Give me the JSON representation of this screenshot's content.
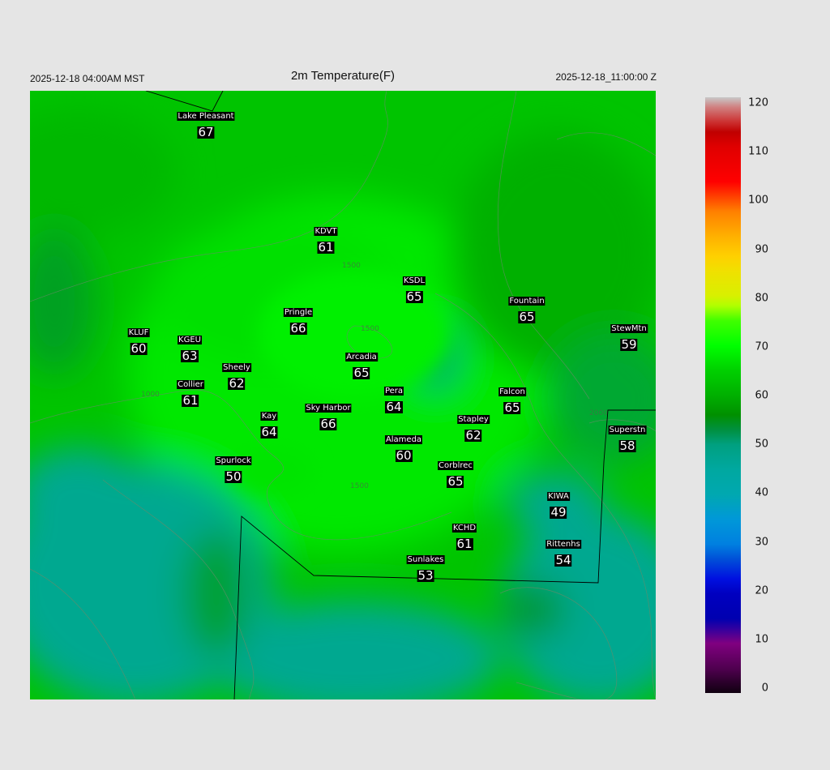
{
  "header": {
    "local_time": "2025-12-18 04:00AM MST",
    "title": "2m Temperature(F)",
    "valid_time": "2025-12-18_11:00:00 Z"
  },
  "stations": [
    {
      "name": "Lake Pleasant",
      "value": "67"
    },
    {
      "name": "KDVT",
      "value": "61"
    },
    {
      "name": "KSDL",
      "value": "65"
    },
    {
      "name": "Fountain",
      "value": "65"
    },
    {
      "name": "Pringle",
      "value": "66"
    },
    {
      "name": "KLUF",
      "value": "60"
    },
    {
      "name": "KGEU",
      "value": "63"
    },
    {
      "name": "StewMtn",
      "value": "59"
    },
    {
      "name": "Arcadia",
      "value": "65"
    },
    {
      "name": "Sheely",
      "value": "62"
    },
    {
      "name": "Collier",
      "value": "61"
    },
    {
      "name": "Pera",
      "value": "64"
    },
    {
      "name": "Falcon",
      "value": "65"
    },
    {
      "name": "Sky Harbor",
      "value": "66"
    },
    {
      "name": "Kay",
      "value": "64"
    },
    {
      "name": "Stapley",
      "value": "62"
    },
    {
      "name": "Superstn",
      "value": "58"
    },
    {
      "name": "Alameda",
      "value": "60"
    },
    {
      "name": "Spurlock",
      "value": "50"
    },
    {
      "name": "Corblrec",
      "value": "65"
    },
    {
      "name": "KIWA",
      "value": "49"
    },
    {
      "name": "KCHD",
      "value": "61"
    },
    {
      "name": "Rittenhs",
      "value": "54"
    },
    {
      "name": "Sunlakes",
      "value": "53"
    }
  ],
  "contour_labels": [
    "1000",
    "1500",
    "1500",
    "1500",
    "2000"
  ],
  "colorbar": {
    "labels": [
      "120",
      "110",
      "100",
      "90",
      "80",
      "70",
      "60",
      "50",
      "40",
      "30",
      "20",
      "10",
      "0"
    ],
    "range": [
      0,
      120
    ],
    "stops": [
      [
        0,
        "#100010"
      ],
      [
        5,
        "#500050"
      ],
      [
        10,
        "#800080"
      ],
      [
        13,
        "#3000a0"
      ],
      [
        15,
        "#0000b0"
      ],
      [
        20,
        "#0000c0"
      ],
      [
        23,
        "#0010e0"
      ],
      [
        27,
        "#0050d8"
      ],
      [
        30,
        "#0080e0"
      ],
      [
        35,
        "#0098d8"
      ],
      [
        40,
        "#00a8b0"
      ],
      [
        45,
        "#00a8a0"
      ],
      [
        50,
        "#00a080"
      ],
      [
        53,
        "#009040"
      ],
      [
        56,
        "#009000"
      ],
      [
        60,
        "#00b000"
      ],
      [
        65,
        "#00d000"
      ],
      [
        70,
        "#00ff00"
      ],
      [
        75,
        "#40ff00"
      ],
      [
        78,
        "#b0ff00"
      ],
      [
        80,
        "#d8f000"
      ],
      [
        85,
        "#f0e000"
      ],
      [
        88,
        "#ffd000"
      ],
      [
        92,
        "#ffb000"
      ],
      [
        97,
        "#ff8000"
      ],
      [
        100,
        "#ff4000"
      ],
      [
        103,
        "#ff0000"
      ],
      [
        110,
        "#e00000"
      ],
      [
        113,
        "#c00000"
      ],
      [
        115,
        "#cc3030"
      ],
      [
        118,
        "#d08080"
      ],
      [
        120,
        "#c8c8c8"
      ]
    ]
  }
}
